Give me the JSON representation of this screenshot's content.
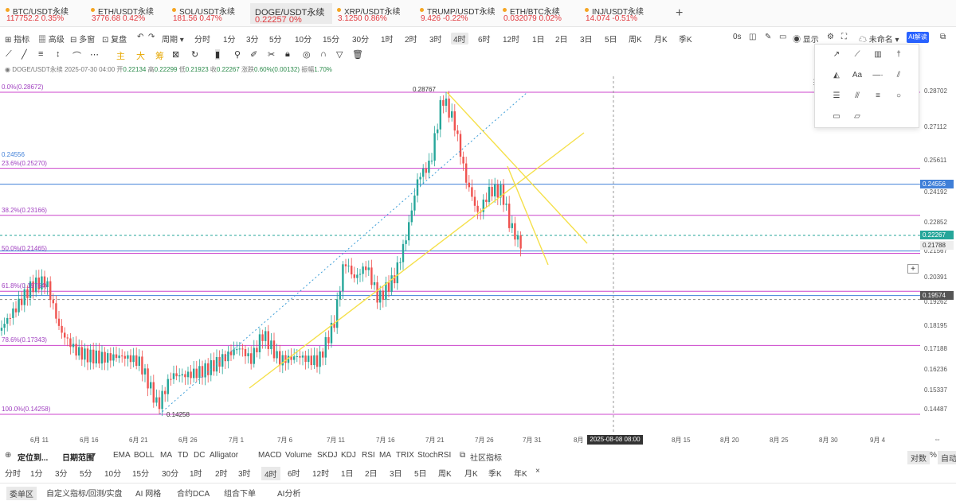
{
  "tickers": [
    {
      "symbol": "BTC/USDT永续",
      "price": "117752.2",
      "change": "0.35%"
    },
    {
      "symbol": "ETH/USDT永续",
      "price": "3776.68",
      "change": "0.42%"
    },
    {
      "symbol": "SOL/USDT永续",
      "price": "181.56",
      "change": "0.47%"
    },
    {
      "symbol": "DOGE/USDT永续",
      "price": "0.22257",
      "change": "0%",
      "active": true
    },
    {
      "symbol": "XRP/USDT永续",
      "price": "3.1250",
      "change": "0.86%"
    },
    {
      "symbol": "TRUMP/USDT永续",
      "price": "9.426",
      "change": "-0.22%"
    },
    {
      "symbol": "ETH/BTC永续",
      "price": "0.032079",
      "change": "0.02%"
    },
    {
      "symbol": "INJ/USDT永续",
      "price": "14.074",
      "change": "-0.51%"
    }
  ],
  "add_tab": "+",
  "toolbar": {
    "left": [
      "指标",
      "高级",
      "多窗",
      "复盘",
      "周期"
    ],
    "intervals": [
      "分时",
      "1分",
      "3分",
      "5分",
      "10分",
      "15分",
      "30分",
      "1时",
      "2时",
      "3时",
      "4时",
      "6时",
      "12时",
      "1日",
      "2日",
      "3日",
      "5日",
      "周K",
      "月K",
      "季K"
    ],
    "active_interval": "4时",
    "right": [
      "0s",
      "显示",
      "未命名",
      "AI解读"
    ]
  },
  "draw_tools": {
    "labels": [
      "主",
      "大",
      "筹"
    ]
  },
  "info": {
    "pair": "DOGE/USDT永续",
    "time": "2025-07-30 04:00",
    "open_label": "开",
    "open": "0.22134",
    "high_label": "高",
    "high": "0.22299",
    "low_label": "低",
    "low": "0.21923",
    "close_label": "收",
    "close": "0.22267",
    "change_label": "涨跌",
    "change": "0.60%(0.00132)",
    "amp_label": "振幅",
    "amp": "1.70%"
  },
  "fib": [
    {
      "label": "0.0%(0.28672)",
      "price": 0.28672
    },
    {
      "label": "23.6%(0.25270)",
      "price": 0.2527
    },
    {
      "label": "38.2%(0.23166)",
      "price": 0.23166
    },
    {
      "label": "50.0%(0.21465)",
      "price": 0.21465
    },
    {
      "label": "61.8%(0.19764)",
      "price": 0.19764
    },
    {
      "label": "78.6%(0.17343)",
      "price": 0.17343
    },
    {
      "label": "100.0%(0.14258)",
      "price": 0.14258
    }
  ],
  "h_lines": {
    "upper": "0.24556",
    "lower": "0.19574"
  },
  "markers": {
    "high": "0.28767",
    "low": "0.14258"
  },
  "price_ticks": [
    "0.28702",
    "0.27112",
    "0.25611",
    "0.24192",
    "0.22852",
    "0.21567",
    "0.20391",
    "0.19262",
    "0.18195",
    "0.17188",
    "0.16236",
    "0.15337",
    "0.14487"
  ],
  "price_boxes": {
    "upper": "0.24556",
    "current": "0.22267",
    "cursor": "0.21788",
    "lower": "0.19574"
  },
  "date_ticks": [
    "6月 11",
    "6月 16",
    "6月 21",
    "6月 26",
    "7月 1",
    "7月 6",
    "7月 11",
    "7月 16",
    "7月 21",
    "7月 26",
    "7月 31",
    "8月",
    "8月 15",
    "8月 20",
    "8月 25",
    "8月 30",
    "9月 4"
  ],
  "cursor_date": "2025-08-08 08:00",
  "bar1": {
    "items": [
      "定位到...",
      "日期范围",
      "EMA",
      "BOLL",
      "MA",
      "TD",
      "DC",
      "Alligator",
      "MACD",
      "Volume",
      "SKDJ",
      "KDJ",
      "RSI",
      "MA",
      "TRIX",
      "StochRSI",
      "社区指标"
    ],
    "right": [
      "对数",
      "%",
      "自动"
    ]
  },
  "bar2": {
    "items": [
      "分时",
      "1分",
      "3分",
      "5分",
      "10分",
      "15分",
      "30分",
      "1时",
      "2时",
      "3时",
      "4时",
      "6时",
      "12时",
      "1日",
      "2日",
      "3日",
      "5日",
      "周K",
      "月K",
      "季K",
      "年K",
      "×"
    ],
    "active": "4时"
  },
  "bar3": {
    "items": [
      "委单区",
      "自定义指标/回测/实盘",
      "AI 网格",
      "合约DCA",
      "组合下单",
      "AI分析"
    ]
  },
  "palette": {
    "text_tool": "Aa"
  },
  "colors": {
    "up": "#26a69a",
    "down": "#ef5350",
    "fib": "#cc44cc",
    "blue_line": "#3f7fd8",
    "trend": "#f5e04a",
    "accent": "#2962ff"
  }
}
